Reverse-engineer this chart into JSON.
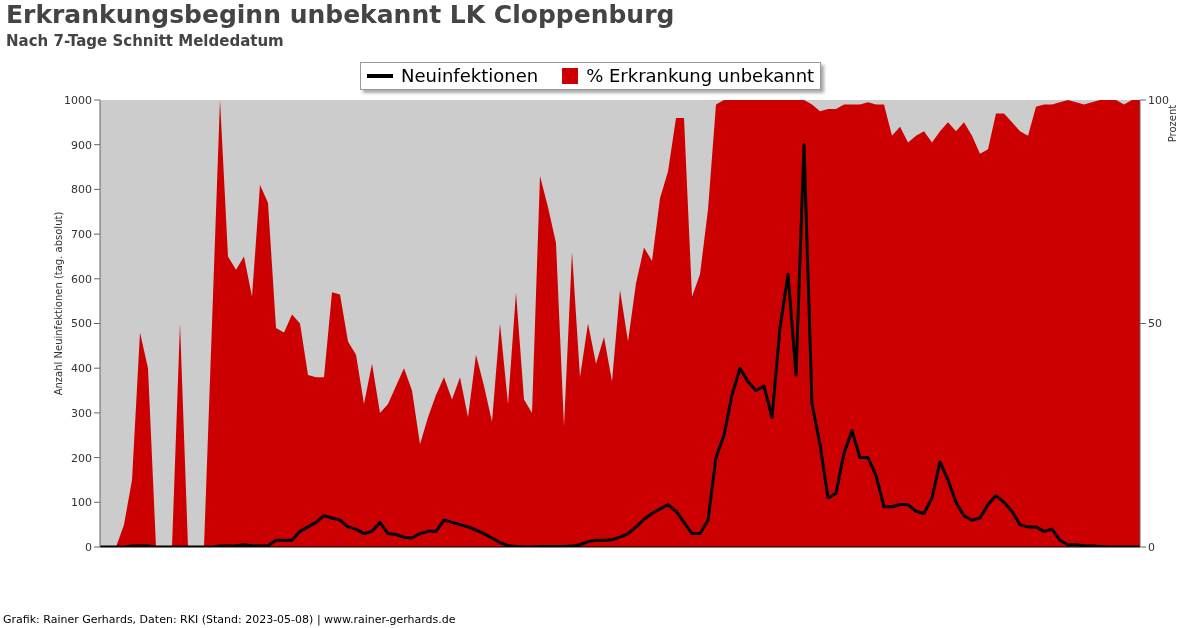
{
  "chart_data": {
    "type": "line",
    "title": "Erkrankungsbeginn unbekannt LK Cloppenburg",
    "subtitle": "Nach 7-Tage Schnitt Meldedatum",
    "ylabel": "Anzahl Neuinfektionen (tag. absolut)",
    "y2label": "Prozent",
    "annotations": [
      "Grafik: Rainer Gerhards, Daten: RKI (Stand: 2023-05-08) | www.rainer-gerhards.de"
    ],
    "categories": [
      null,
      null,
      null,
      null,
      null,
      null,
      null,
      null,
      null,
      null,
      null,
      null,
      null,
      null,
      null,
      null,
      null,
      null,
      null,
      null,
      null,
      null,
      null,
      null,
      null,
      null,
      null,
      null,
      null,
      null,
      null,
      null,
      null,
      null,
      null,
      null,
      null,
      null,
      null,
      null,
      null,
      null,
      null,
      null,
      null,
      null,
      null,
      null,
      null,
      null,
      null,
      null,
      null,
      null,
      null,
      null,
      null,
      null,
      null,
      null,
      null,
      null,
      null,
      null,
      null,
      null,
      null,
      null,
      null,
      null,
      null,
      null,
      null,
      null,
      null,
      null,
      null,
      null,
      null,
      null,
      null,
      null,
      null,
      null,
      null,
      null,
      null,
      null,
      null,
      null,
      null,
      null,
      null,
      null,
      null,
      null,
      null,
      null,
      null,
      null,
      null,
      null,
      null,
      null,
      null,
      null,
      null,
      null,
      null,
      null,
      null,
      null,
      null,
      null,
      null,
      null,
      null,
      null,
      null,
      null,
      null,
      null,
      null,
      null,
      null,
      null,
      null,
      null,
      null,
      null,
      null
    ],
    "series": [
      {
        "name": "% Erkrankung unbekannt",
        "type": "area",
        "axis": "y2",
        "color": "#cc0000",
        "values": [
          0,
          0,
          0,
          5,
          15,
          48,
          40,
          0,
          0,
          0,
          50,
          0,
          0,
          0,
          50,
          100,
          65,
          62,
          65,
          56,
          81,
          77,
          49,
          48,
          52,
          50,
          38.5,
          38,
          38,
          57,
          56.5,
          46,
          43,
          32,
          41,
          30,
          32,
          36,
          40,
          35,
          23,
          29,
          34,
          38,
          33,
          38,
          29,
          43,
          36,
          28,
          50,
          32,
          57,
          33,
          30,
          83,
          76,
          68,
          27,
          66,
          38,
          50,
          41,
          47,
          37,
          57.5,
          46,
          59,
          67,
          64,
          78,
          84,
          96,
          96,
          56,
          61,
          75.5,
          99,
          100,
          100,
          100,
          100,
          100,
          100,
          100,
          100,
          100,
          100,
          100,
          99,
          97.5,
          98,
          98,
          99,
          99,
          99,
          99.5,
          99,
          99,
          92,
          94,
          90.5,
          92,
          93,
          90.5,
          93,
          95,
          93,
          95,
          92,
          88,
          89,
          97,
          97,
          95,
          93,
          92,
          98.5,
          99,
          99,
          99.5,
          100,
          99.5,
          99,
          99.5,
          100,
          100,
          100,
          99,
          100,
          100
        ]
      },
      {
        "name": "Neuinfektionen",
        "color": "#000000",
        "values": [
          0,
          0,
          0,
          0,
          2,
          2,
          2,
          0,
          0,
          0,
          0,
          0,
          0,
          0,
          0,
          2,
          2,
          3,
          5,
          3,
          2,
          3,
          15,
          15,
          15,
          35,
          45,
          55,
          70,
          65,
          60,
          45,
          40,
          30,
          35,
          55,
          30,
          28,
          22,
          20,
          30,
          35,
          35,
          60,
          55,
          50,
          45,
          38,
          30,
          20,
          10,
          3,
          1,
          0,
          0,
          1,
          1,
          1,
          1,
          2,
          5,
          12,
          15,
          15,
          16,
          22,
          30,
          45,
          62,
          75,
          85,
          95,
          80,
          55,
          30,
          30,
          60,
          200,
          250,
          340,
          400,
          370,
          350,
          360,
          290,
          490,
          610,
          385,
          900,
          320,
          230,
          110,
          120,
          210,
          260,
          200,
          200,
          160,
          90,
          90,
          95,
          95,
          80,
          75,
          110,
          190,
          150,
          100,
          70,
          60,
          65,
          95,
          115,
          100,
          80,
          50,
          45,
          45,
          35,
          40,
          15,
          5,
          5,
          3,
          2,
          1,
          0,
          0,
          0,
          0,
          0
        ]
      }
    ],
    "ylim": [
      0,
      1000
    ],
    "yticks": [
      0,
      100,
      200,
      300,
      400,
      500,
      600,
      700,
      800,
      900,
      1000
    ],
    "y2lim": [
      0,
      100
    ],
    "y2ticks": [
      0,
      50,
      100
    ],
    "legend": "top",
    "marker": "none",
    "line_style": "solid"
  }
}
